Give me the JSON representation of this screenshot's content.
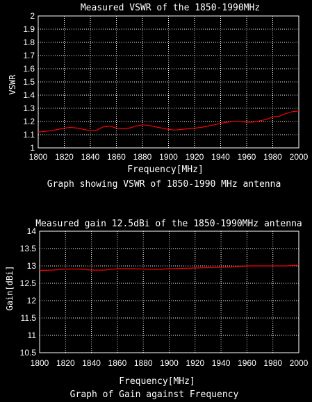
{
  "chart_data": [
    {
      "type": "line",
      "title": "Measured VSWR of the 1850-1990MHz",
      "xlabel": "Frequency[MHz]",
      "ylabel": "VSWR",
      "caption": "Graph showing VSWR of 1850-1990 MHz antenna",
      "xlim": [
        1800,
        2000
      ],
      "ylim": [
        1,
        2
      ],
      "x_ticks": [
        "1800",
        "1820",
        "1840",
        "1860",
        "1880",
        "1900",
        "1920",
        "1940",
        "1960",
        "1980",
        "2000"
      ],
      "y_ticks": [
        "2",
        "1.9",
        "1.8",
        "1.7",
        "1.6",
        "1.5",
        "1.4",
        "1.3",
        "1.2",
        "1.1",
        "1"
      ],
      "grid": true,
      "series": [
        {
          "color": "#ff0000",
          "x": [
            1800,
            1805,
            1810,
            1815,
            1820,
            1825,
            1830,
            1835,
            1840,
            1845,
            1850,
            1855,
            1860,
            1865,
            1870,
            1875,
            1880,
            1885,
            1890,
            1895,
            1900,
            1905,
            1910,
            1915,
            1920,
            1925,
            1930,
            1935,
            1940,
            1945,
            1950,
            1955,
            1960,
            1965,
            1970,
            1975,
            1980,
            1985,
            1990,
            1995,
            2000
          ],
          "values": [
            1.12,
            1.125,
            1.13,
            1.14,
            1.15,
            1.155,
            1.15,
            1.14,
            1.13,
            1.135,
            1.16,
            1.165,
            1.15,
            1.145,
            1.15,
            1.165,
            1.175,
            1.17,
            1.16,
            1.15,
            1.14,
            1.135,
            1.14,
            1.145,
            1.15,
            1.155,
            1.165,
            1.175,
            1.185,
            1.195,
            1.2,
            1.2,
            1.195,
            1.195,
            1.205,
            1.215,
            1.235,
            1.24,
            1.26,
            1.275,
            1.28
          ]
        }
      ]
    },
    {
      "type": "line",
      "title": "Measured gain 12.5dBi of the 1850-1990MHz antenna",
      "xlabel": "Frequency[MHz]",
      "ylabel": "Gain[dBi]",
      "caption": "Graph of Gain against Frequency",
      "xlim": [
        1800,
        2000
      ],
      "ylim": [
        10.5,
        14
      ],
      "x_ticks": [
        "1800",
        "1820",
        "1840",
        "1860",
        "1880",
        "1900",
        "1920",
        "1940",
        "1960",
        "1980",
        "2000"
      ],
      "y_ticks": [
        "14",
        "13.5",
        "13",
        "12.5",
        "12",
        "11.5",
        "11",
        "10.5"
      ],
      "grid": true,
      "series": [
        {
          "color": "#ff0000",
          "x": [
            1800,
            1810,
            1820,
            1830,
            1840,
            1850,
            1860,
            1870,
            1880,
            1890,
            1900,
            1910,
            1920,
            1930,
            1940,
            1950,
            1960,
            1970,
            1980,
            1990,
            2000
          ],
          "values": [
            12.87,
            12.88,
            12.91,
            12.91,
            12.88,
            12.88,
            12.92,
            12.92,
            12.91,
            12.9,
            12.92,
            12.93,
            12.94,
            12.95,
            12.96,
            12.97,
            13.0,
            13.0,
            13.0,
            13.0,
            13.02
          ]
        }
      ]
    }
  ]
}
